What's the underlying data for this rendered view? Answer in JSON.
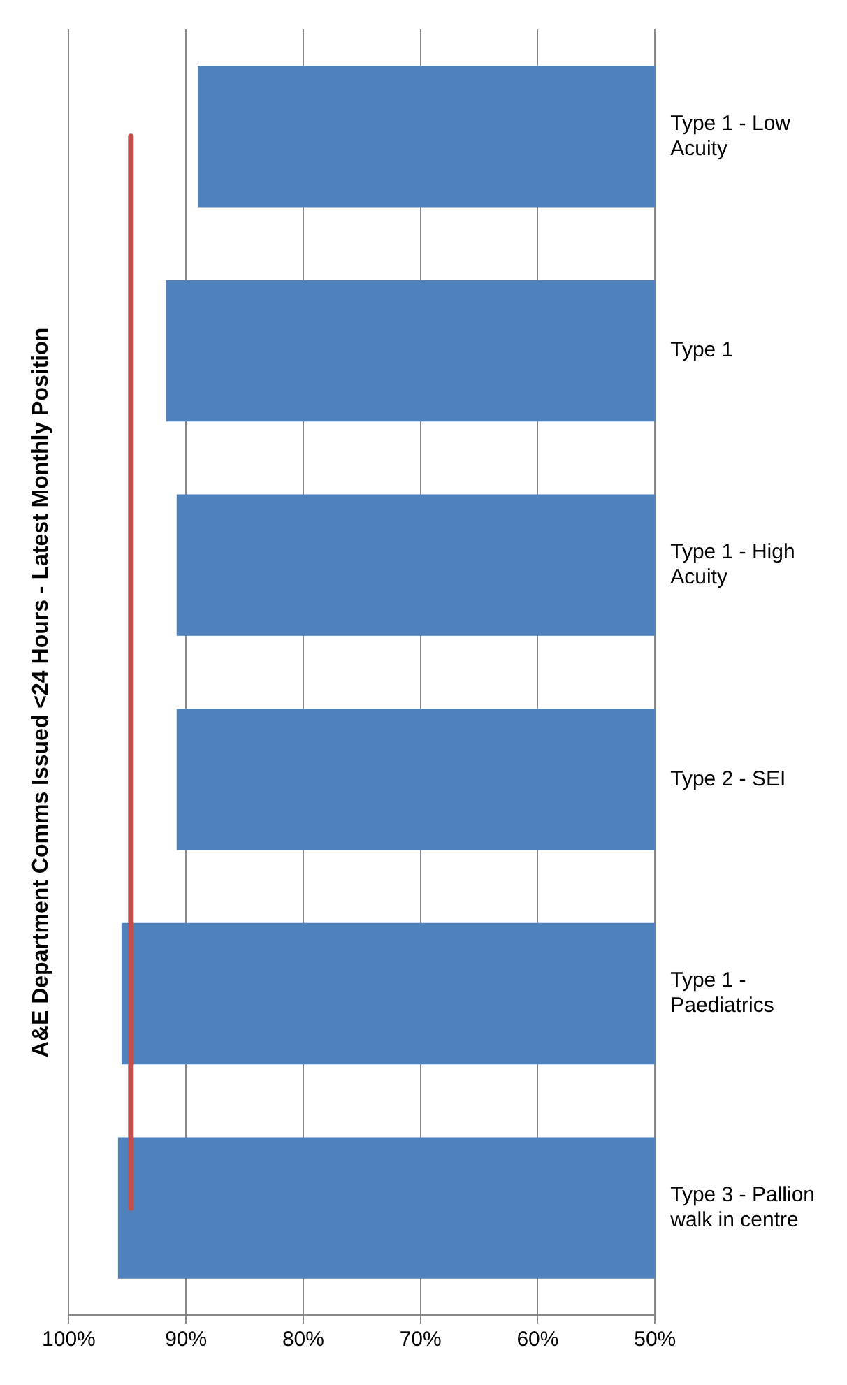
{
  "chart_data": {
    "type": "bar",
    "orientation": "horizontal",
    "title": "A&E Department Comms Issued <24 Hours - Latest Monthly Position",
    "categories": [
      "Type 1 - Low Acuity",
      "Type 1",
      "Type 1 - High Acuity",
      "Type 2 - SEI",
      "Type 1 - Paediatrics",
      "Type 3 - Pallion walk in centre"
    ],
    "series": [
      {
        "color": "#4f81bd",
        "values": [
          89,
          91.7,
          90.8,
          90.8,
          95.5,
          95.8
        ]
      },
      {
        "type": "line",
        "color": "#c0504d",
        "values": [
          94.7,
          94.7,
          94.7,
          94.7,
          94.7,
          94.7
        ]
      }
    ],
    "xlim": [
      100,
      50
    ],
    "xticks": [
      {
        "value": 100,
        "label": "100%"
      },
      {
        "value": 90,
        "label": "90%"
      },
      {
        "value": 80,
        "label": "80%"
      },
      {
        "value": 70,
        "label": "70%"
      },
      {
        "value": 60,
        "label": "60%"
      },
      {
        "value": 50,
        "label": "50%"
      }
    ],
    "grid": "x",
    "legend": false
  }
}
